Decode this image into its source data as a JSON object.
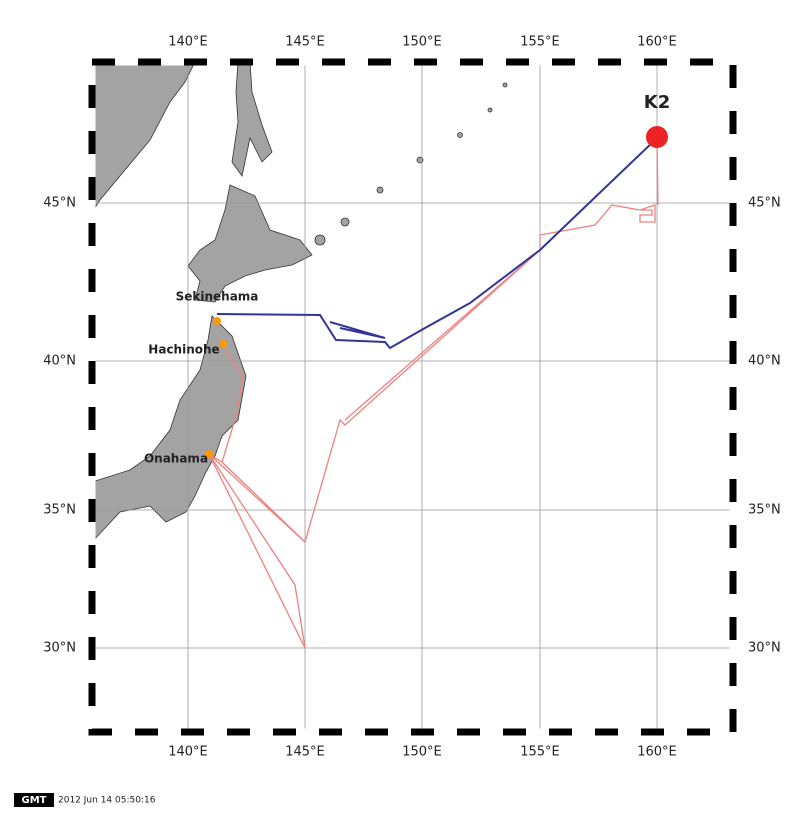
{
  "lon_labels": [
    "140°E",
    "145°E",
    "150°E",
    "155°E",
    "160°E"
  ],
  "lat_labels": [
    "45°N",
    "40°N",
    "35°N",
    "30°N"
  ],
  "places": [
    "Sekinehama",
    "Hachinohe",
    "Onahama"
  ],
  "station": "K2",
  "footer": {
    "logo": "GMT",
    "timestamp": "2012 Jun 14 05:50:16"
  }
}
